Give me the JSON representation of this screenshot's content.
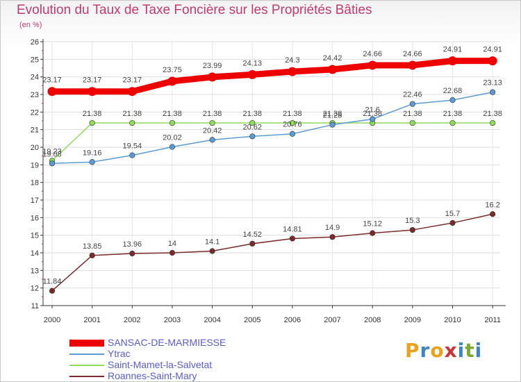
{
  "title": "Evolution du Taux de Taxe Foncière sur les Propriétés Bâties",
  "subtitle": "(en %)",
  "logo": {
    "text": "Proxiti",
    "letters": [
      "P",
      "r",
      "o",
      "x",
      "i",
      "t",
      "i"
    ],
    "colors": [
      "#e8a21b",
      "#3d85c6",
      "#e8a21b",
      "#cc3333",
      "#3d85c6",
      "#7aaa33",
      "#3d85c6"
    ]
  },
  "chart_data": {
    "type": "line",
    "title": "Evolution du Taux de Taxe Foncière sur les Propriétés Bâties",
    "ylabel": "(en %)",
    "xlabel": "",
    "ylim": [
      11,
      26
    ],
    "yticks": [
      11,
      12,
      13,
      14,
      15,
      16,
      17,
      18,
      19,
      20,
      21,
      22,
      23,
      24,
      25,
      26
    ],
    "categories": [
      "2000",
      "2001",
      "2002",
      "2003",
      "2004",
      "2005",
      "2006",
      "2007",
      "2008",
      "2009",
      "2010",
      "2011"
    ],
    "series": [
      {
        "name": "SANSAC-DE-MARMIESSE",
        "color": "#ee0000",
        "values": [
          23.17,
          23.17,
          23.17,
          23.75,
          23.99,
          24.13,
          24.3,
          24.42,
          24.66,
          24.66,
          24.91,
          24.91
        ],
        "labels": [
          "23.17",
          "23.17",
          "23.17",
          "23.75",
          "23.99",
          "24.13",
          "24.3",
          "24.42",
          "24.66",
          "24.66",
          "24.91",
          "24.91"
        ]
      },
      {
        "name": "Ytrac",
        "color": "#5b9bd5",
        "values": [
          19.08,
          19.16,
          19.54,
          20.02,
          20.42,
          20.62,
          20.76,
          21.28,
          21.6,
          22.46,
          22.68,
          23.13
        ],
        "labels": [
          "19.08",
          "19.16",
          "19.54",
          "20.02",
          "20.42",
          "20.62",
          "20.76",
          "21.28",
          "21.6",
          "22.46",
          "22.68",
          "23.13"
        ]
      },
      {
        "name": "Saint-Mamet-la-Salvetat",
        "color": "#8fdc5a",
        "values": [
          19.23,
          21.38,
          21.38,
          21.38,
          21.38,
          21.38,
          21.38,
          21.38,
          21.38,
          21.38,
          21.38,
          21.38
        ],
        "labels": [
          "19.23",
          "21.38",
          "21.38",
          "21.38",
          "21.38",
          "21.38",
          "21.38",
          "21.38",
          "21.38",
          "21.38",
          "21.38",
          "21.38"
        ]
      },
      {
        "name": "Roannes-Saint-Mary",
        "color": "#7a2a2a",
        "values": [
          11.84,
          13.85,
          13.96,
          14.0,
          14.1,
          14.52,
          14.81,
          14.9,
          15.12,
          15.3,
          15.7,
          16.2
        ],
        "labels": [
          "11.84",
          "13.85",
          "13.96",
          "14",
          "14.1",
          "14.52",
          "14.81",
          "14.9",
          "15.12",
          "15.3",
          "15.7",
          "16.2"
        ]
      }
    ]
  }
}
